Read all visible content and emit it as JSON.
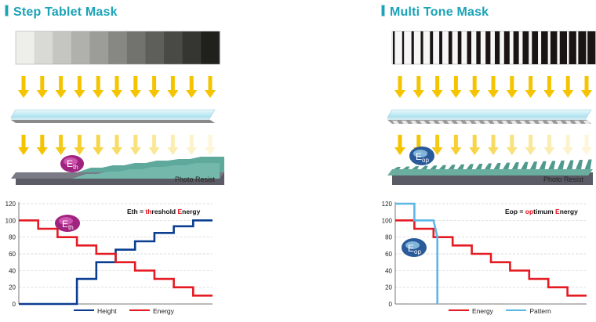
{
  "colors": {
    "title": "#1aa3b8",
    "energy": "#e41b23",
    "height": "#0b3d91",
    "pattern": "#5ab8e8",
    "arrow": "#f5c400",
    "resist_teal": "#5ea89c",
    "substrate": "#5b5b66"
  },
  "left": {
    "title": "Step Tablet Mask",
    "resist_label": "Photo Resist",
    "bubble": {
      "base": "E",
      "sub": "th"
    },
    "chart_bubble": {
      "base": "E",
      "sub": "th"
    },
    "definition": {
      "abbr_a": "E",
      "abbr_b": "th",
      "eq": " = ",
      "p1": "th",
      "p2": "reshold ",
      "p3": "E",
      "p4": "nergy"
    },
    "legend": [
      "Height",
      "Energy"
    ]
  },
  "right": {
    "title": "Multi Tone Mask",
    "resist_label": "Photo Resist",
    "bubble": {
      "base": "E",
      "sub": "op"
    },
    "chart_bubble": {
      "base": "E",
      "sub": "op"
    },
    "definition": {
      "abbr_a": "E",
      "abbr_b": "op",
      "eq": " = ",
      "p1": "op",
      "p2": "timum ",
      "p3": "E",
      "p4": "nergy"
    },
    "legend": [
      "Energy",
      "Pattern"
    ]
  },
  "chart_data": [
    {
      "type": "line",
      "step": true,
      "ylim": [
        0,
        120
      ],
      "yticks": [
        0,
        20,
        40,
        60,
        80,
        100,
        120
      ],
      "grid": true,
      "legend_position": "bottom",
      "series": [
        {
          "name": "Height",
          "color": "#0b3d91",
          "x": [
            0,
            1,
            2,
            3,
            4,
            5,
            6,
            7,
            8,
            9,
            10
          ],
          "values": [
            0,
            0,
            0,
            30,
            50,
            65,
            75,
            85,
            93,
            100,
            100
          ]
        },
        {
          "name": "Energy",
          "color": "#e41b23",
          "x": [
            0,
            1,
            2,
            3,
            4,
            5,
            6,
            7,
            8,
            9,
            10
          ],
          "values": [
            100,
            90,
            80,
            70,
            60,
            50,
            40,
            30,
            20,
            10,
            10
          ]
        }
      ]
    },
    {
      "type": "line",
      "step": true,
      "ylim": [
        0,
        120
      ],
      "yticks": [
        0,
        20,
        40,
        60,
        80,
        100,
        120
      ],
      "grid": true,
      "legend_position": "bottom",
      "series": [
        {
          "name": "Energy",
          "color": "#e41b23",
          "x": [
            0,
            1,
            2,
            3,
            4,
            5,
            6,
            7,
            8,
            9,
            10
          ],
          "values": [
            100,
            90,
            80,
            70,
            60,
            50,
            40,
            30,
            20,
            10,
            10
          ]
        },
        {
          "name": "Pattern",
          "color": "#5ab8e8",
          "x": [
            0,
            1,
            1,
            2,
            2.2,
            2.2
          ],
          "values": [
            120,
            120,
            100,
            100,
            80,
            0
          ]
        }
      ]
    }
  ]
}
